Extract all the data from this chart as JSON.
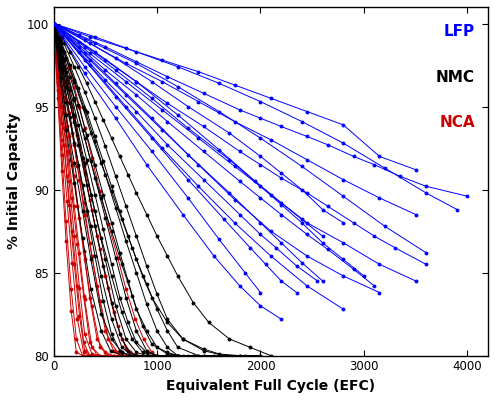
{
  "title": "",
  "xlabel": "Equivalent Full Cycle (EFC)",
  "ylabel": "% Initial Capacity",
  "xlim": [
    0,
    4200
  ],
  "ylim": [
    80,
    101
  ],
  "yticks": [
    80,
    85,
    90,
    95,
    100
  ],
  "xticks": [
    0,
    1000,
    2000,
    3000,
    4000
  ],
  "legend_labels": [
    "LFP",
    "NMC",
    "NCA"
  ],
  "LFP_color": "#0000FF",
  "NMC_color": "#000000",
  "NCA_color": "#CC0000",
  "LFP_series": [
    [
      [
        0,
        350,
        700,
        1050,
        1400,
        1750,
        2100,
        2450,
        2800,
        3150,
        3500
      ],
      [
        100,
        99.2,
        98.5,
        97.8,
        97.1,
        96.3,
        95.5,
        94.7,
        93.9,
        92.0,
        91.2
      ]
    ],
    [
      [
        0,
        350,
        700,
        1050,
        1400,
        1750,
        2100,
        2450,
        2800,
        3150,
        3500
      ],
      [
        100,
        98.8,
        97.6,
        96.5,
        95.3,
        94.1,
        93.0,
        91.8,
        90.6,
        89.5,
        88.5
      ]
    ],
    [
      [
        0,
        350,
        700,
        1050,
        1400,
        1750,
        2100,
        2450,
        2800,
        3150,
        3500
      ],
      [
        100,
        98.2,
        96.5,
        94.8,
        93.1,
        91.4,
        89.7,
        88.0,
        86.8,
        85.5,
        84.5
      ]
    ],
    [
      [
        0,
        350,
        700,
        1050,
        1400,
        1750,
        2100,
        2450,
        2800,
        3150
      ],
      [
        100,
        97.8,
        95.7,
        93.6,
        91.5,
        89.4,
        87.5,
        86.0,
        84.8,
        83.8
      ]
    ],
    [
      [
        0,
        350,
        700,
        1050,
        1400,
        1750,
        2100,
        2450,
        2800
      ],
      [
        100,
        97.5,
        95.0,
        92.5,
        90.2,
        88.0,
        86.0,
        84.2,
        82.8
      ]
    ],
    [
      [
        0,
        250,
        500,
        800,
        1100,
        1450,
        1800,
        2000,
        2200,
        2450,
        2650,
        2900,
        3100,
        3350,
        3600,
        4000
      ],
      [
        100,
        99.3,
        98.6,
        97.7,
        96.8,
        95.8,
        94.8,
        94.3,
        93.8,
        93.2,
        92.7,
        92.0,
        91.5,
        90.8,
        90.2,
        89.6
      ]
    ],
    [
      [
        0,
        250,
        500,
        800,
        1100,
        1450,
        1800,
        2000,
        2200,
        2450,
        2650,
        2900,
        3100,
        3300,
        3600
      ],
      [
        100,
        98.9,
        97.8,
        96.5,
        95.2,
        93.8,
        92.3,
        91.5,
        90.7,
        89.8,
        89.0,
        88.0,
        87.2,
        86.5,
        85.5
      ]
    ],
    [
      [
        0,
        250,
        500,
        800,
        1100,
        1450,
        1800,
        2000,
        2200,
        2450,
        2650,
        2900,
        3100
      ],
      [
        100,
        98.6,
        97.2,
        95.7,
        94.1,
        92.3,
        90.5,
        89.5,
        88.5,
        87.3,
        86.4,
        85.2,
        84.2
      ]
    ],
    [
      [
        0,
        250,
        500,
        800,
        1100,
        1450,
        1800,
        2000,
        2150,
        2350,
        2550
      ],
      [
        100,
        98.3,
        96.6,
        94.7,
        92.7,
        90.6,
        88.5,
        87.3,
        86.5,
        85.4,
        84.5
      ]
    ],
    [
      [
        0,
        300,
        600,
        950,
        1300,
        1700,
        2000,
        2200,
        2400,
        2600,
        2800
      ],
      [
        100,
        99.0,
        97.9,
        96.5,
        95.0,
        93.4,
        92.0,
        91.0,
        90.0,
        88.8,
        88.0
      ]
    ],
    [
      [
        0,
        300,
        600,
        950,
        1300,
        1700,
        2000,
        2200,
        2400,
        2600,
        2800,
        3000
      ],
      [
        100,
        98.6,
        97.2,
        95.5,
        93.7,
        91.8,
        90.2,
        89.1,
        88.0,
        86.8,
        85.8,
        84.8
      ]
    ],
    [
      [
        0,
        300,
        600,
        950,
        1300,
        1700,
        2000,
        2200,
        2400,
        2600
      ],
      [
        100,
        98.2,
        96.4,
        94.3,
        92.1,
        89.8,
        88.0,
        86.8,
        85.6,
        84.5
      ]
    ],
    [
      [
        0,
        300,
        600,
        950,
        1300,
        1650,
        1900,
        2050,
        2200,
        2350
      ],
      [
        100,
        97.8,
        95.6,
        93.1,
        90.6,
        88.2,
        86.5,
        85.5,
        84.5,
        83.8
      ]
    ],
    [
      [
        0,
        300,
        600,
        950,
        1300,
        1600,
        1850,
        2000
      ],
      [
        100,
        97.4,
        95.0,
        92.3,
        89.5,
        87.0,
        85.0,
        83.8
      ]
    ],
    [
      [
        0,
        300,
        600,
        900,
        1250,
        1550,
        1800,
        2000,
        2200
      ],
      [
        100,
        97.0,
        94.3,
        91.5,
        88.5,
        86.0,
        84.2,
        83.0,
        82.2
      ]
    ],
    [
      [
        0,
        400,
        800,
        1200,
        1600,
        2000,
        2400,
        2800,
        3200,
        3600,
        3900
      ],
      [
        100,
        99.2,
        98.3,
        97.4,
        96.4,
        95.3,
        94.1,
        92.8,
        91.3,
        89.8,
        88.8
      ]
    ],
    [
      [
        0,
        400,
        800,
        1200,
        1600,
        2000,
        2400,
        2800,
        3200,
        3600
      ],
      [
        100,
        98.8,
        97.6,
        96.2,
        94.7,
        93.1,
        91.4,
        89.6,
        87.8,
        86.2
      ]
    ],
    [
      [
        0,
        400,
        800,
        1200,
        1600,
        1950,
        2200,
        2400,
        2600
      ],
      [
        100,
        98.3,
        96.5,
        94.5,
        92.4,
        90.5,
        89.2,
        88.2,
        87.2
      ]
    ]
  ],
  "NMC_series": [
    [
      [
        0,
        80,
        160,
        240,
        320,
        400,
        480,
        560,
        640,
        720,
        800,
        900,
        1000,
        1100,
        1200,
        1350,
        1500,
        1700,
        1900,
        2100
      ],
      [
        100,
        99.2,
        98.3,
        97.4,
        96.4,
        95.3,
        94.2,
        93.1,
        92.0,
        90.9,
        89.8,
        88.5,
        87.2,
        86.0,
        84.8,
        83.2,
        82.0,
        81.0,
        80.5,
        80.0
      ]
    ],
    [
      [
        0,
        80,
        160,
        240,
        320,
        400,
        480,
        560,
        640,
        720,
        800,
        900,
        1000,
        1100,
        1200,
        1400,
        1600,
        1800
      ],
      [
        100,
        98.8,
        97.5,
        96.1,
        94.7,
        93.2,
        91.7,
        90.2,
        88.7,
        87.2,
        85.8,
        84.3,
        82.8,
        81.5,
        80.5,
        80.0,
        80.0,
        80.0
      ]
    ],
    [
      [
        0,
        80,
        160,
        240,
        320,
        400,
        480,
        560,
        640,
        720,
        800,
        900,
        1000,
        1100,
        1200,
        1400
      ],
      [
        100,
        98.4,
        96.8,
        95.1,
        93.3,
        91.5,
        89.7,
        88.0,
        86.2,
        84.5,
        82.8,
        81.5,
        80.5,
        80.2,
        80.0,
        80.0
      ]
    ],
    [
      [
        0,
        80,
        160,
        240,
        320,
        400,
        480,
        560,
        640,
        720,
        800,
        900,
        1000,
        1100
      ],
      [
        100,
        98.0,
        96.0,
        93.9,
        91.8,
        89.7,
        87.6,
        85.5,
        83.5,
        82.0,
        80.8,
        80.2,
        80.0,
        80.0
      ]
    ],
    [
      [
        0,
        80,
        160,
        240,
        320,
        400,
        480,
        560,
        640,
        720,
        800,
        900
      ],
      [
        100,
        97.6,
        95.2,
        92.7,
        90.3,
        87.8,
        85.4,
        83.2,
        81.3,
        80.3,
        80.0,
        80.0
      ]
    ],
    [
      [
        0,
        80,
        160,
        240,
        320,
        400,
        480,
        560,
        640,
        720,
        800
      ],
      [
        100,
        97.2,
        94.4,
        91.5,
        88.7,
        86.0,
        83.3,
        81.3,
        80.3,
        80.0,
        80.0
      ]
    ],
    [
      [
        0,
        60,
        120,
        200,
        280,
        360,
        460,
        560,
        660,
        760,
        860,
        950,
        1100,
        1250,
        1450,
        1600,
        1800,
        2000
      ],
      [
        100,
        99.0,
        97.9,
        96.5,
        95.0,
        93.4,
        91.6,
        89.9,
        88.2,
        86.5,
        84.8,
        83.5,
        82.0,
        81.0,
        80.4,
        80.1,
        80.0,
        80.0
      ]
    ],
    [
      [
        0,
        60,
        120,
        200,
        280,
        360,
        460,
        560,
        660,
        760,
        860,
        950,
        1100,
        1250,
        1450
      ],
      [
        100,
        98.5,
        97.1,
        95.4,
        93.6,
        91.7,
        89.5,
        87.5,
        85.5,
        83.6,
        81.8,
        80.7,
        80.1,
        80.0,
        80.0
      ]
    ],
    [
      [
        0,
        60,
        120,
        200,
        280,
        360,
        460,
        560,
        660,
        760,
        860,
        950,
        1100
      ],
      [
        100,
        98.1,
        96.2,
        94.1,
        91.9,
        89.7,
        87.1,
        84.8,
        82.6,
        81.0,
        80.2,
        80.0,
        80.0
      ]
    ],
    [
      [
        0,
        60,
        120,
        200,
        280,
        360,
        460,
        560,
        660,
        760,
        860
      ],
      [
        100,
        97.7,
        95.3,
        92.8,
        90.3,
        87.8,
        84.8,
        82.2,
        80.5,
        80.0,
        80.0
      ]
    ],
    [
      [
        0,
        60,
        120,
        200,
        280,
        360,
        460,
        560,
        660,
        760
      ],
      [
        100,
        97.3,
        94.5,
        91.6,
        88.7,
        85.8,
        82.5,
        81.0,
        80.2,
        80.0
      ]
    ],
    [
      [
        0,
        60,
        120,
        200,
        280,
        360,
        460,
        550,
        660
      ],
      [
        100,
        96.8,
        93.6,
        90.4,
        87.1,
        84.0,
        81.5,
        80.3,
        80.0
      ]
    ],
    [
      [
        0,
        100,
        200,
        300,
        400,
        500,
        600,
        700,
        800,
        900,
        1000,
        1100,
        1250,
        1450,
        1650,
        1850,
        2000
      ],
      [
        100,
        98.8,
        97.4,
        95.9,
        94.3,
        92.6,
        90.8,
        89.0,
        87.2,
        85.4,
        83.7,
        82.2,
        81.0,
        80.3,
        80.0,
        80.0,
        80.0
      ]
    ],
    [
      [
        0,
        100,
        200,
        300,
        400,
        500,
        600,
        700,
        800,
        900,
        1000,
        1100,
        1200,
        1350,
        1550
      ],
      [
        100,
        98.3,
        96.6,
        94.8,
        92.9,
        90.9,
        88.9,
        86.9,
        85.0,
        83.1,
        81.5,
        80.5,
        80.0,
        80.0,
        80.0
      ]
    ],
    [
      [
        0,
        100,
        200,
        300,
        400,
        500,
        600,
        700,
        800,
        900,
        1000,
        1100,
        1200
      ],
      [
        100,
        97.8,
        95.5,
        93.1,
        90.7,
        88.3,
        85.9,
        83.5,
        81.5,
        80.3,
        80.0,
        80.0,
        80.0
      ]
    ],
    [
      [
        0,
        100,
        200,
        300,
        400,
        500,
        600,
        700,
        800,
        900,
        1000
      ],
      [
        100,
        97.3,
        94.5,
        91.6,
        88.7,
        85.8,
        83.0,
        81.0,
        80.2,
        80.0,
        80.0
      ]
    ]
  ],
  "NCA_series": [
    [
      [
        0,
        50,
        100,
        150,
        200,
        250,
        300,
        370,
        450,
        530,
        620,
        700,
        790,
        870,
        950
      ],
      [
        100,
        99.2,
        98.3,
        97.3,
        96.2,
        95.0,
        93.7,
        91.9,
        89.9,
        87.9,
        85.9,
        84.0,
        82.2,
        81.0,
        80.2
      ]
    ],
    [
      [
        0,
        50,
        100,
        150,
        200,
        250,
        300,
        370,
        450,
        530,
        620,
        700,
        790
      ],
      [
        100,
        98.8,
        97.4,
        96.0,
        94.4,
        92.7,
        91.0,
        88.8,
        86.4,
        84.1,
        81.8,
        80.4,
        80.0
      ]
    ],
    [
      [
        0,
        50,
        100,
        150,
        200,
        250,
        300,
        370,
        450,
        530,
        620,
        700
      ],
      [
        100,
        98.3,
        96.5,
        94.6,
        92.7,
        90.6,
        88.5,
        86.0,
        83.3,
        81.0,
        80.2,
        80.0
      ]
    ],
    [
      [
        0,
        50,
        100,
        150,
        200,
        250,
        300,
        370,
        450,
        530,
        620
      ],
      [
        100,
        97.8,
        95.6,
        93.2,
        90.8,
        88.3,
        85.8,
        83.0,
        80.5,
        80.0,
        80.0
      ]
    ],
    [
      [
        0,
        50,
        100,
        150,
        200,
        250,
        300,
        370,
        450,
        530
      ],
      [
        100,
        97.3,
        94.6,
        91.8,
        89.0,
        86.2,
        83.4,
        80.5,
        80.0,
        80.0
      ]
    ],
    [
      [
        0,
        50,
        100,
        150,
        200,
        250,
        300,
        370,
        440
      ],
      [
        100,
        96.8,
        93.7,
        90.5,
        87.2,
        84.1,
        81.3,
        80.1,
        80.0
      ]
    ],
    [
      [
        0,
        50,
        100,
        150,
        200,
        250,
        300,
        360
      ],
      [
        100,
        96.3,
        92.7,
        89.1,
        85.5,
        82.4,
        80.3,
        80.0
      ]
    ],
    [
      [
        0,
        40,
        80,
        130,
        180,
        230,
        290,
        350,
        420,
        500,
        580,
        660,
        740,
        820,
        900,
        1000,
        1150,
        1300,
        1450
      ],
      [
        100,
        99.0,
        97.9,
        96.5,
        95.0,
        93.3,
        91.4,
        89.4,
        87.2,
        84.8,
        82.6,
        81.0,
        80.2,
        80.0,
        80.0,
        80.0,
        80.0,
        80.0,
        80.0
      ]
    ],
    [
      [
        0,
        40,
        80,
        130,
        180,
        230,
        290,
        350,
        420,
        500,
        580,
        660,
        740,
        820,
        950,
        1100
      ],
      [
        100,
        98.5,
        97.0,
        95.3,
        93.4,
        91.4,
        89.2,
        86.8,
        84.2,
        81.5,
        80.3,
        80.0,
        80.0,
        80.0,
        80.0,
        80.0
      ]
    ],
    [
      [
        0,
        40,
        80,
        130,
        180,
        230,
        290,
        350,
        420,
        500,
        580,
        660,
        740
      ],
      [
        100,
        98.0,
        96.0,
        93.8,
        91.5,
        89.0,
        86.3,
        83.5,
        81.0,
        80.2,
        80.0,
        80.0,
        80.0
      ]
    ],
    [
      [
        0,
        40,
        80,
        130,
        180,
        230,
        290,
        350,
        420,
        500,
        580,
        660
      ],
      [
        100,
        97.5,
        95.0,
        92.3,
        89.5,
        86.7,
        83.6,
        80.8,
        80.0,
        80.0,
        80.0,
        80.0
      ]
    ],
    [
      [
        0,
        40,
        80,
        130,
        180,
        230,
        290,
        350,
        420,
        500
      ],
      [
        100,
        97.0,
        94.0,
        90.8,
        87.5,
        84.2,
        80.8,
        80.0,
        80.0,
        80.0
      ]
    ],
    [
      [
        0,
        40,
        80,
        130,
        180,
        230,
        290,
        350,
        410
      ],
      [
        100,
        96.5,
        93.0,
        89.3,
        85.6,
        82.2,
        80.2,
        80.0,
        80.0
      ]
    ],
    [
      [
        0,
        40,
        80,
        120,
        170,
        220,
        280,
        340
      ],
      [
        100,
        96.0,
        92.1,
        88.1,
        84.0,
        81.0,
        80.0,
        80.0
      ]
    ],
    [
      [
        0,
        40,
        80,
        120,
        170,
        220,
        280
      ],
      [
        100,
        95.5,
        91.1,
        86.9,
        82.7,
        80.2,
        80.0
      ]
    ]
  ]
}
